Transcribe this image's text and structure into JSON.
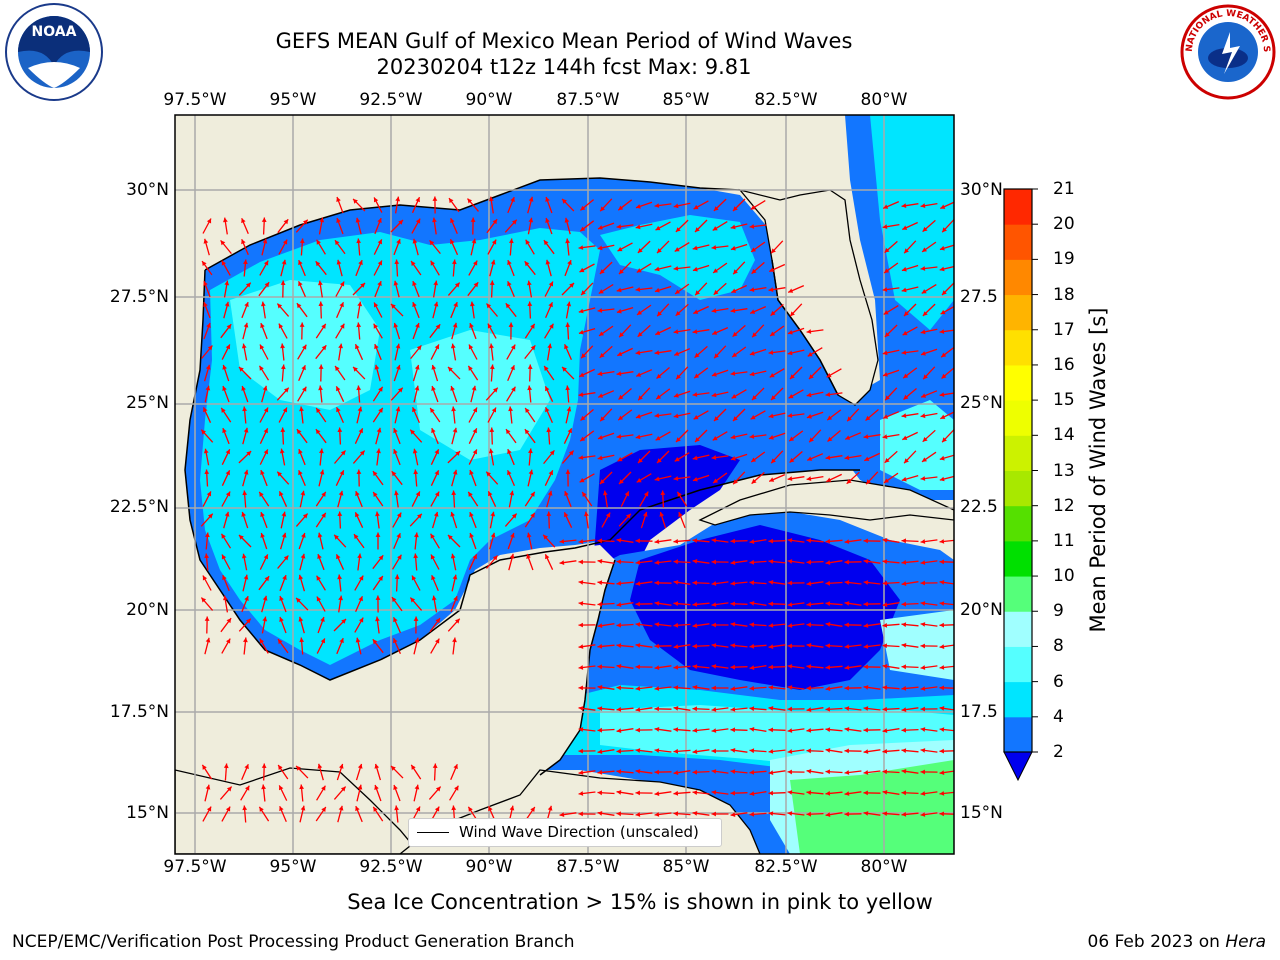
{
  "header": {
    "title": "GEFS MEAN Gulf of Mexico Mean Period of Wind Waves",
    "subtitle": "20230204 t12z 144h fcst   Max: 9.81"
  },
  "map": {
    "lon_labels": [
      "97.5°W",
      "95°W",
      "92.5°W",
      "90°W",
      "87.5°W",
      "85°W",
      "82.5°W",
      "80°W"
    ],
    "lat_labels_left": [
      "30°N",
      "27.5°N",
      "25°N",
      "22.5°N",
      "20°N",
      "17.5°N",
      "15°N"
    ],
    "lat_labels_right": [
      "30°N",
      "27.5",
      "25°N",
      "22.5",
      "20°N",
      "17.5",
      "15°N"
    ],
    "legend_label": "Wind Wave Direction (unscaled)",
    "land_color": "#efeddc",
    "arrow_color": "#ff0000"
  },
  "colorbar": {
    "title": "Mean Period of Wind Waves [s]",
    "tick_labels": [
      "2",
      "4",
      "6",
      "8",
      "9",
      "10",
      "11",
      "12",
      "13",
      "14",
      "15",
      "16",
      "17",
      "18",
      "19",
      "20",
      "21"
    ],
    "colors": [
      "#1276ff",
      "#00e5ff",
      "#55ffff",
      "#a0ffff",
      "#55ff7a",
      "#00e000",
      "#55e000",
      "#a8e800",
      "#ccf200",
      "#eeff00",
      "#ffff00",
      "#ffe000",
      "#ffb400",
      "#ff8800",
      "#ff5500",
      "#ff2800",
      "#ff0000"
    ],
    "extend_color": "#0000ee"
  },
  "note": "Sea Ice Concentration > 15% is shown in pink to yellow",
  "footer": {
    "left": "NCEP/EMC/Verification Post Processing Product Generation Branch",
    "right_date": "06 Feb 2023 on",
    "right_machine": "Hera"
  },
  "logos": {
    "left": "NOAA",
    "right": "NATIONAL WEATHER SERVICE"
  }
}
